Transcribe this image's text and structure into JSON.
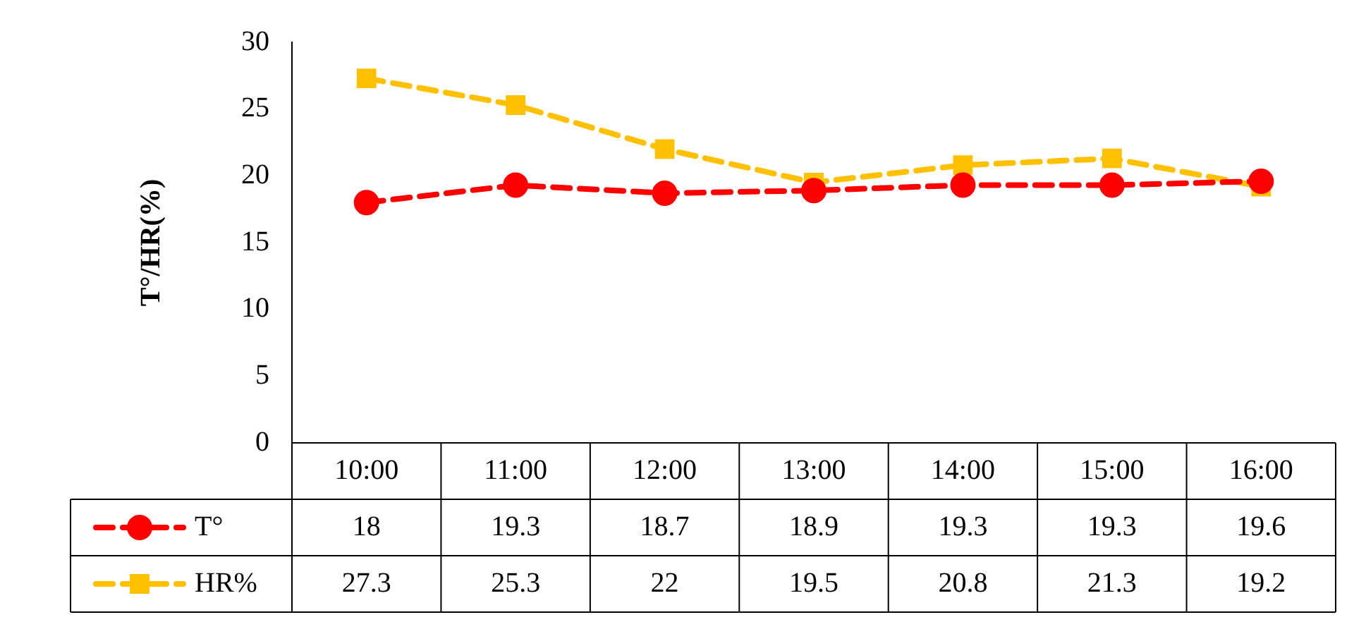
{
  "chart_data": {
    "type": "line",
    "ylabel": "T°/HR(%)",
    "categories": [
      "10:00",
      "11:00",
      "12:00",
      "13:00",
      "14:00",
      "15:00",
      "16:00"
    ],
    "series": [
      {
        "name": "T°",
        "color": "#ff0000",
        "marker": "circle",
        "values": [
          18,
          19.3,
          18.7,
          18.9,
          19.3,
          19.3,
          19.6
        ]
      },
      {
        "name": "HR%",
        "color": "#ffc000",
        "marker": "square",
        "values": [
          27.3,
          25.3,
          22,
          19.5,
          20.8,
          21.3,
          19.2
        ]
      }
    ],
    "ylim": [
      0,
      30
    ],
    "yticks": [
      0,
      5,
      10,
      15,
      20,
      25,
      30
    ],
    "grid": false,
    "legend": "bottom",
    "line_style": "dashed",
    "data_labels": true
  }
}
